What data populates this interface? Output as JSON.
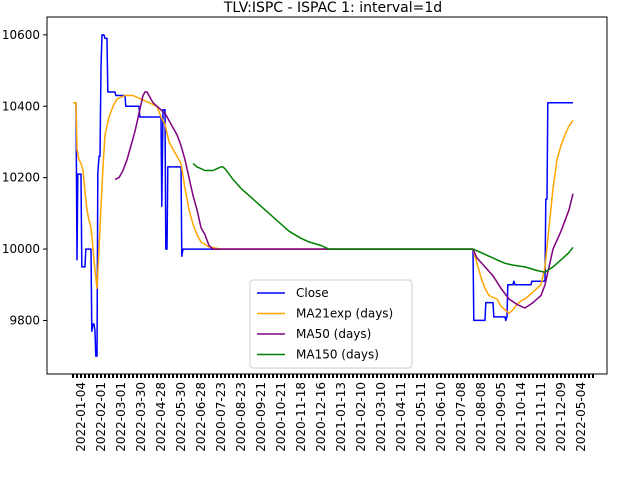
{
  "chart_data": {
    "type": "line",
    "title": "TLV:ISPC - ISPAC 1: interval=1d",
    "xlabel": "",
    "ylabel": "",
    "ylim": [
      9650,
      10650
    ],
    "y_ticks": [
      {
        "value": 9800,
        "label": "9800"
      },
      {
        "value": 10000,
        "label": "10000"
      },
      {
        "value": 10200,
        "label": "10200"
      },
      {
        "value": 10400,
        "label": "10400"
      },
      {
        "value": 10600,
        "label": "10600"
      }
    ],
    "x_range": [
      0,
      260
    ],
    "x_ticks": [
      {
        "pos": 4,
        "label": "2022-01-04"
      },
      {
        "pos": 14,
        "label": "2022-02-01"
      },
      {
        "pos": 24,
        "label": "2022-03-01"
      },
      {
        "pos": 34,
        "label": "2022-03-30"
      },
      {
        "pos": 44,
        "label": "2022-04-28"
      },
      {
        "pos": 54,
        "label": "2022-05-30"
      },
      {
        "pos": 64,
        "label": "2022-06-28"
      },
      {
        "pos": 74,
        "label": "2020-07-23"
      },
      {
        "pos": 84,
        "label": "2020-08-23"
      },
      {
        "pos": 94,
        "label": "2020-09-21"
      },
      {
        "pos": 104,
        "label": "2020-10-21"
      },
      {
        "pos": 114,
        "label": "2020-11-18"
      },
      {
        "pos": 124,
        "label": "2020-12-16"
      },
      {
        "pos": 134,
        "label": "2021-01-13"
      },
      {
        "pos": 144,
        "label": "2021-02-10"
      },
      {
        "pos": 154,
        "label": "2021-03-10"
      },
      {
        "pos": 164,
        "label": "2021-04-11"
      },
      {
        "pos": 174,
        "label": "2021-05-11"
      },
      {
        "pos": 184,
        "label": "2021-06-10"
      },
      {
        "pos": 194,
        "label": "2021-07-08"
      },
      {
        "pos": 204,
        "label": "2021-08-08"
      },
      {
        "pos": 214,
        "label": "2021-09-05"
      },
      {
        "pos": 224,
        "label": "2021-10-14"
      },
      {
        "pos": 234,
        "label": "2021-11-11"
      },
      {
        "pos": 244,
        "label": "2021-12-09"
      },
      {
        "pos": 254,
        "label": "2022-05-04"
      }
    ],
    "grid": false,
    "legend_position": "lower-center",
    "series": [
      {
        "name": "Close",
        "color": "#0000ff",
        "points": [
          [
            0,
            10410
          ],
          [
            1.5,
            10410
          ],
          [
            2,
            9970
          ],
          [
            2.4,
            10210
          ],
          [
            4,
            10210
          ],
          [
            4.4,
            9950
          ],
          [
            6,
            9950
          ],
          [
            6.4,
            10000
          ],
          [
            9,
            10000
          ],
          [
            9.4,
            9770
          ],
          [
            10,
            9790
          ],
          [
            10.5,
            9790
          ],
          [
            11,
            9770
          ],
          [
            11.4,
            9700
          ],
          [
            12,
            9700
          ],
          [
            12.4,
            10210
          ],
          [
            13,
            10260
          ],
          [
            13.5,
            10260
          ],
          [
            14,
            10510
          ],
          [
            14.5,
            10600
          ],
          [
            15.5,
            10600
          ],
          [
            16,
            10590
          ],
          [
            17,
            10590
          ],
          [
            17.4,
            10440
          ],
          [
            21,
            10440
          ],
          [
            21.4,
            10430
          ],
          [
            26,
            10430
          ],
          [
            26.4,
            10400
          ],
          [
            33,
            10400
          ],
          [
            33.4,
            10370
          ],
          [
            42,
            10370
          ],
          [
            42.4,
            10370
          ],
          [
            44,
            10370
          ],
          [
            44.4,
            10120
          ],
          [
            45,
            10390
          ],
          [
            46,
            10390
          ],
          [
            46.4,
            10000
          ],
          [
            47,
            10000
          ],
          [
            47.4,
            10230
          ],
          [
            54,
            10230
          ],
          [
            54.4,
            9980
          ],
          [
            55,
            10000
          ],
          [
            134,
            10000
          ],
          [
            200,
            10000
          ],
          [
            200.4,
            9800
          ],
          [
            206,
            9800
          ],
          [
            206.4,
            9850
          ],
          [
            210,
            9850
          ],
          [
            210.4,
            9810
          ],
          [
            216,
            9810
          ],
          [
            216.4,
            9800
          ],
          [
            217,
            9810
          ],
          [
            217.4,
            9900
          ],
          [
            220,
            9900
          ],
          [
            220.4,
            9910
          ],
          [
            221,
            9900
          ],
          [
            229,
            9900
          ],
          [
            229.4,
            9910
          ],
          [
            236,
            9910
          ],
          [
            236.4,
            10140
          ],
          [
            237,
            10140
          ],
          [
            237.4,
            10410
          ],
          [
            250,
            10410
          ]
        ]
      },
      {
        "name": "MA21exp (days)",
        "color": "#ffa500",
        "points": [
          [
            0,
            10410
          ],
          [
            1.5,
            10410
          ],
          [
            2,
            10280
          ],
          [
            3,
            10250
          ],
          [
            4,
            10240
          ],
          [
            5,
            10220
          ],
          [
            6,
            10160
          ],
          [
            7,
            10110
          ],
          [
            8,
            10080
          ],
          [
            9,
            10060
          ],
          [
            10,
            10000
          ],
          [
            11,
            9940
          ],
          [
            12,
            9890
          ],
          [
            13,
            10000
          ],
          [
            14,
            10120
          ],
          [
            15,
            10230
          ],
          [
            16,
            10320
          ],
          [
            18,
            10370
          ],
          [
            20,
            10400
          ],
          [
            22,
            10420
          ],
          [
            26,
            10430
          ],
          [
            30,
            10430
          ],
          [
            34,
            10420
          ],
          [
            38,
            10410
          ],
          [
            42,
            10400
          ],
          [
            44,
            10370
          ],
          [
            46,
            10350
          ],
          [
            48,
            10300
          ],
          [
            50,
            10280
          ],
          [
            52,
            10260
          ],
          [
            54,
            10240
          ],
          [
            56,
            10170
          ],
          [
            58,
            10110
          ],
          [
            60,
            10070
          ],
          [
            62,
            10040
          ],
          [
            64,
            10020
          ],
          [
            68,
            10006
          ],
          [
            74,
            10000
          ],
          [
            134,
            10000
          ],
          [
            200,
            10000
          ],
          [
            202,
            9960
          ],
          [
            204,
            9920
          ],
          [
            206,
            9890
          ],
          [
            208,
            9870
          ],
          [
            212,
            9860
          ],
          [
            214,
            9840
          ],
          [
            218,
            9820
          ],
          [
            220,
            9830
          ],
          [
            222,
            9845
          ],
          [
            224,
            9855
          ],
          [
            226,
            9860
          ],
          [
            228,
            9870
          ],
          [
            230,
            9880
          ],
          [
            232,
            9890
          ],
          [
            234,
            9900
          ],
          [
            236,
            9950
          ],
          [
            238,
            10060
          ],
          [
            240,
            10170
          ],
          [
            242,
            10250
          ],
          [
            244,
            10290
          ],
          [
            246,
            10320
          ],
          [
            248,
            10345
          ],
          [
            250,
            10360
          ]
        ]
      },
      {
        "name": "MA50 (days)",
        "color": "#800080",
        "points": [
          [
            21,
            10195
          ],
          [
            23,
            10200
          ],
          [
            25,
            10220
          ],
          [
            27,
            10250
          ],
          [
            29,
            10290
          ],
          [
            31,
            10330
          ],
          [
            33,
            10380
          ],
          [
            35,
            10430
          ],
          [
            36,
            10440
          ],
          [
            37,
            10440
          ],
          [
            38,
            10430
          ],
          [
            40,
            10410
          ],
          [
            42,
            10400
          ],
          [
            44,
            10390
          ],
          [
            46,
            10380
          ],
          [
            48,
            10360
          ],
          [
            50,
            10340
          ],
          [
            52,
            10320
          ],
          [
            54,
            10290
          ],
          [
            56,
            10250
          ],
          [
            58,
            10200
          ],
          [
            60,
            10150
          ],
          [
            62,
            10110
          ],
          [
            64,
            10060
          ],
          [
            66,
            10040
          ],
          [
            68,
            10010
          ],
          [
            70,
            10000
          ],
          [
            134,
            10000
          ],
          [
            200,
            10000
          ],
          [
            202,
            9975
          ],
          [
            206,
            9950
          ],
          [
            210,
            9925
          ],
          [
            214,
            9890
          ],
          [
            218,
            9860
          ],
          [
            222,
            9845
          ],
          [
            226,
            9835
          ],
          [
            230,
            9850
          ],
          [
            232,
            9860
          ],
          [
            234,
            9870
          ],
          [
            236,
            9900
          ],
          [
            238,
            9950
          ],
          [
            240,
            10000
          ],
          [
            244,
            10050
          ],
          [
            248,
            10110
          ],
          [
            250,
            10155
          ]
        ]
      },
      {
        "name": "MA150 (days)",
        "color": "#008000",
        "points": [
          [
            60,
            10240
          ],
          [
            62,
            10230
          ],
          [
            64,
            10225
          ],
          [
            66,
            10220
          ],
          [
            70,
            10220
          ],
          [
            72,
            10225
          ],
          [
            74,
            10230
          ],
          [
            75,
            10230
          ],
          [
            76,
            10225
          ],
          [
            78,
            10210
          ],
          [
            80,
            10195
          ],
          [
            84,
            10170
          ],
          [
            90,
            10140
          ],
          [
            96,
            10110
          ],
          [
            102,
            10080
          ],
          [
            108,
            10050
          ],
          [
            114,
            10030
          ],
          [
            118,
            10020
          ],
          [
            124,
            10010
          ],
          [
            128,
            10000
          ],
          [
            134,
            10000
          ],
          [
            200,
            10000
          ],
          [
            204,
            9990
          ],
          [
            208,
            9980
          ],
          [
            212,
            9970
          ],
          [
            216,
            9960
          ],
          [
            220,
            9955
          ],
          [
            226,
            9950
          ],
          [
            232,
            9940
          ],
          [
            236,
            9935
          ],
          [
            240,
            9950
          ],
          [
            244,
            9970
          ],
          [
            248,
            9990
          ],
          [
            250,
            10005
          ]
        ]
      }
    ]
  }
}
